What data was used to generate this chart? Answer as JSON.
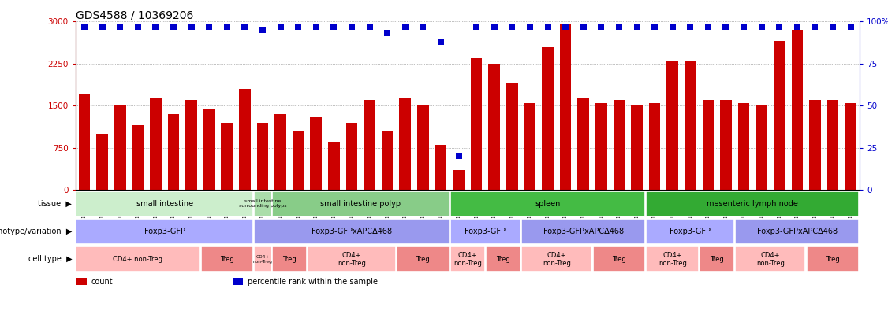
{
  "title": "GDS4588 / 10369206",
  "sample_ids": [
    "GSM1011468",
    "GSM1011469",
    "GSM1011477",
    "GSM1011478",
    "GSM1011482",
    "GSM1011497",
    "GSM1011498",
    "GSM1011466",
    "GSM1011467",
    "GSM1011499",
    "GSM1011489",
    "GSM1011504",
    "GSM1011476",
    "GSM1011490",
    "GSM1011505",
    "GSM1011475",
    "GSM1011487",
    "GSM1011506",
    "GSM1011474",
    "GSM1011488",
    "GSM1011507",
    "GSM1011479",
    "GSM1011494",
    "GSM1011495",
    "GSM1011480",
    "GSM1011496",
    "GSM1011473",
    "GSM1011484",
    "GSM1011502",
    "GSM1011472",
    "GSM1011483",
    "GSM1011503",
    "GSM1011465",
    "GSM1011491",
    "GSM1011492",
    "GSM1011464",
    "GSM1011481",
    "GSM1011493",
    "GSM1011471",
    "GSM1011486",
    "GSM1011500",
    "GSM1011470",
    "GSM1011485",
    "GSM1011501"
  ],
  "bar_values": [
    1700,
    1000,
    1500,
    1150,
    1650,
    1350,
    1600,
    1450,
    1200,
    1800,
    1200,
    1350,
    1050,
    1300,
    850,
    1200,
    1600,
    1050,
    1650,
    1500,
    800,
    350,
    2350,
    2250,
    1900,
    1550,
    2550,
    2950,
    1650,
    1550,
    1600,
    1500,
    1550,
    2300,
    2300,
    1600,
    1600,
    1550,
    1500,
    2650,
    2850,
    1600,
    1600,
    1550
  ],
  "blue_values": [
    97,
    97,
    97,
    97,
    97,
    97,
    97,
    97,
    97,
    97,
    95,
    97,
    97,
    97,
    97,
    97,
    97,
    93,
    97,
    97,
    88,
    20,
    97,
    97,
    97,
    97,
    97,
    97,
    97,
    97,
    97,
    97,
    97,
    97,
    97,
    97,
    97,
    97,
    97,
    97,
    97,
    97,
    97,
    97
  ],
  "ylim_left": [
    0,
    3000
  ],
  "ylim_right": [
    0,
    100
  ],
  "yticks_left": [
    0,
    750,
    1500,
    2250,
    3000
  ],
  "yticks_right": [
    0,
    25,
    50,
    75,
    100
  ],
  "bar_color": "#cc0000",
  "dot_color": "#0000cc",
  "dot_size": 30,
  "title_fontsize": 10,
  "tick_label_fontsize": 5.2,
  "tissue_groups": [
    {
      "label": "small intestine",
      "start": 0,
      "end": 10,
      "color": "#cceecc",
      "fontsize": 7
    },
    {
      "label": "small intestine\nsurrounding polyps",
      "start": 10,
      "end": 11,
      "color": "#aaddaa",
      "fontsize": 4.5
    },
    {
      "label": "small intestine polyp",
      "start": 11,
      "end": 21,
      "color": "#88cc88",
      "fontsize": 7
    },
    {
      "label": "spleen",
      "start": 21,
      "end": 32,
      "color": "#44bb44",
      "fontsize": 7
    },
    {
      "label": "mesenteric lymph node",
      "start": 32,
      "end": 44,
      "color": "#33aa33",
      "fontsize": 7
    }
  ],
  "genotype_groups": [
    {
      "label": "Foxp3-GFP",
      "start": 0,
      "end": 10,
      "color": "#aaaaff",
      "fontsize": 7
    },
    {
      "label": "Foxp3-GFPxAPCΔ468",
      "start": 10,
      "end": 21,
      "color": "#9999ee",
      "fontsize": 7
    },
    {
      "label": "Foxp3-GFP",
      "start": 21,
      "end": 25,
      "color": "#aaaaff",
      "fontsize": 7
    },
    {
      "label": "Foxp3-GFPxAPCΔ468",
      "start": 25,
      "end": 32,
      "color": "#9999ee",
      "fontsize": 7
    },
    {
      "label": "Foxp3-GFP",
      "start": 32,
      "end": 37,
      "color": "#aaaaff",
      "fontsize": 7
    },
    {
      "label": "Foxp3-GFPxAPCΔ468",
      "start": 37,
      "end": 44,
      "color": "#9999ee",
      "fontsize": 7
    }
  ],
  "celltype_groups": [
    {
      "label": "CD4+ non-Treg",
      "start": 0,
      "end": 7,
      "color": "#ffbbbb",
      "fontsize": 6
    },
    {
      "label": "Treg",
      "start": 7,
      "end": 10,
      "color": "#ee8888",
      "fontsize": 6
    },
    {
      "label": "CD4+\nnon-Treg",
      "start": 10,
      "end": 11,
      "color": "#ffbbbb",
      "fontsize": 4.2
    },
    {
      "label": "Treg",
      "start": 11,
      "end": 13,
      "color": "#ee8888",
      "fontsize": 6
    },
    {
      "label": "CD4+\nnon-Treg",
      "start": 13,
      "end": 18,
      "color": "#ffbbbb",
      "fontsize": 6
    },
    {
      "label": "Treg",
      "start": 18,
      "end": 21,
      "color": "#ee8888",
      "fontsize": 6
    },
    {
      "label": "CD4+\nnon-Treg",
      "start": 21,
      "end": 23,
      "color": "#ffbbbb",
      "fontsize": 6
    },
    {
      "label": "Treg",
      "start": 23,
      "end": 25,
      "color": "#ee8888",
      "fontsize": 6
    },
    {
      "label": "CD4+\nnon-Treg",
      "start": 25,
      "end": 29,
      "color": "#ffbbbb",
      "fontsize": 6
    },
    {
      "label": "Treg",
      "start": 29,
      "end": 32,
      "color": "#ee8888",
      "fontsize": 6
    },
    {
      "label": "CD4+\nnon-Treg",
      "start": 32,
      "end": 35,
      "color": "#ffbbbb",
      "fontsize": 6
    },
    {
      "label": "Treg",
      "start": 35,
      "end": 37,
      "color": "#ee8888",
      "fontsize": 6
    },
    {
      "label": "CD4+\nnon-Treg",
      "start": 37,
      "end": 41,
      "color": "#ffbbbb",
      "fontsize": 6
    },
    {
      "label": "Treg",
      "start": 41,
      "end": 44,
      "color": "#ee8888",
      "fontsize": 6
    }
  ],
  "row_labels": [
    "tissue",
    "genotype/variation",
    "cell type"
  ],
  "row_label_fontsize": 7,
  "legend_items": [
    {
      "color": "#cc0000",
      "label": "count"
    },
    {
      "color": "#0000cc",
      "label": "percentile rank within the sample"
    }
  ]
}
